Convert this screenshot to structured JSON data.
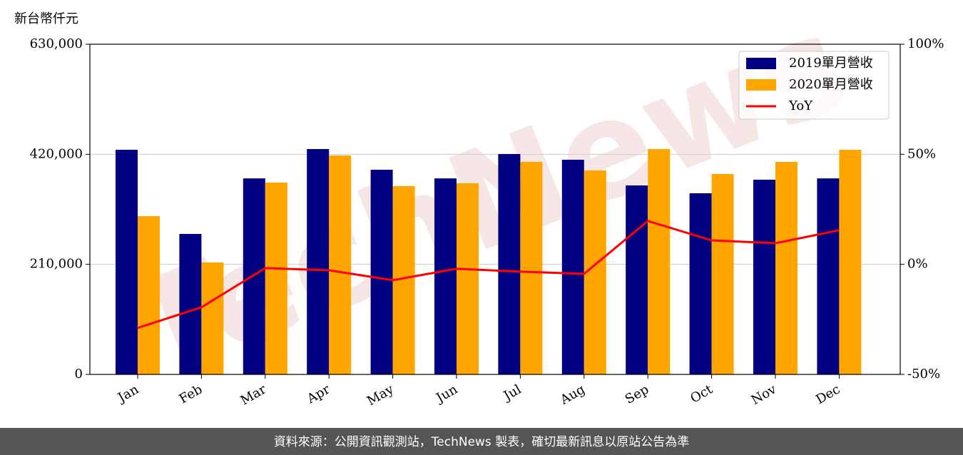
{
  "chart_data": {
    "type": "bar-line",
    "unit_label": "新台幣仟元",
    "watermark": "TechNews",
    "footer": "資料來源：公開資訊觀測站，TechNews 製表，確切最新訊息以原站公告為準",
    "categories": [
      "Jan",
      "Feb",
      "Mar",
      "Apr",
      "May",
      "Jun",
      "Jul",
      "Aug",
      "Sep",
      "Oct",
      "Nov",
      "Dec"
    ],
    "series": [
      {
        "name": "2019單月營收",
        "color": "#000080",
        "type": "bar",
        "values": [
          428600,
          268000,
          374000,
          430000,
          390500,
          374000,
          420500,
          409600,
          360600,
          345600,
          371500,
          374000
        ]
      },
      {
        "name": "2020單月營收",
        "color": "#ffa500",
        "type": "bar",
        "values": [
          302000,
          213600,
          366000,
          417700,
          359200,
          364700,
          405500,
          389200,
          430000,
          382400,
          405500,
          428600
        ]
      },
      {
        "name": "YoY",
        "color": "#ff0000",
        "type": "line",
        "axis": "y2",
        "values": [
          -28.9,
          -19.5,
          -1.7,
          -2.7,
          -7.2,
          -2.0,
          -3.3,
          -4.3,
          19.7,
          10.9,
          9.6,
          15.5
        ]
      }
    ],
    "ylim": [
      0,
      630000
    ],
    "yticks": [
      0,
      {
        "value": 210000,
        "label": "210,000"
      },
      {
        "value": 420000,
        "label": "420,000"
      },
      {
        "value": 630000,
        "label": "630,000"
      }
    ],
    "y2lim": [
      -50,
      100
    ],
    "y2ticks": [
      {
        "value": -50,
        "label": "-50%"
      },
      {
        "value": 0,
        "label": "0%"
      },
      {
        "value": 50,
        "label": "50%"
      },
      {
        "value": 100,
        "label": "100%"
      }
    ],
    "grid": true,
    "legend": "upper right"
  }
}
